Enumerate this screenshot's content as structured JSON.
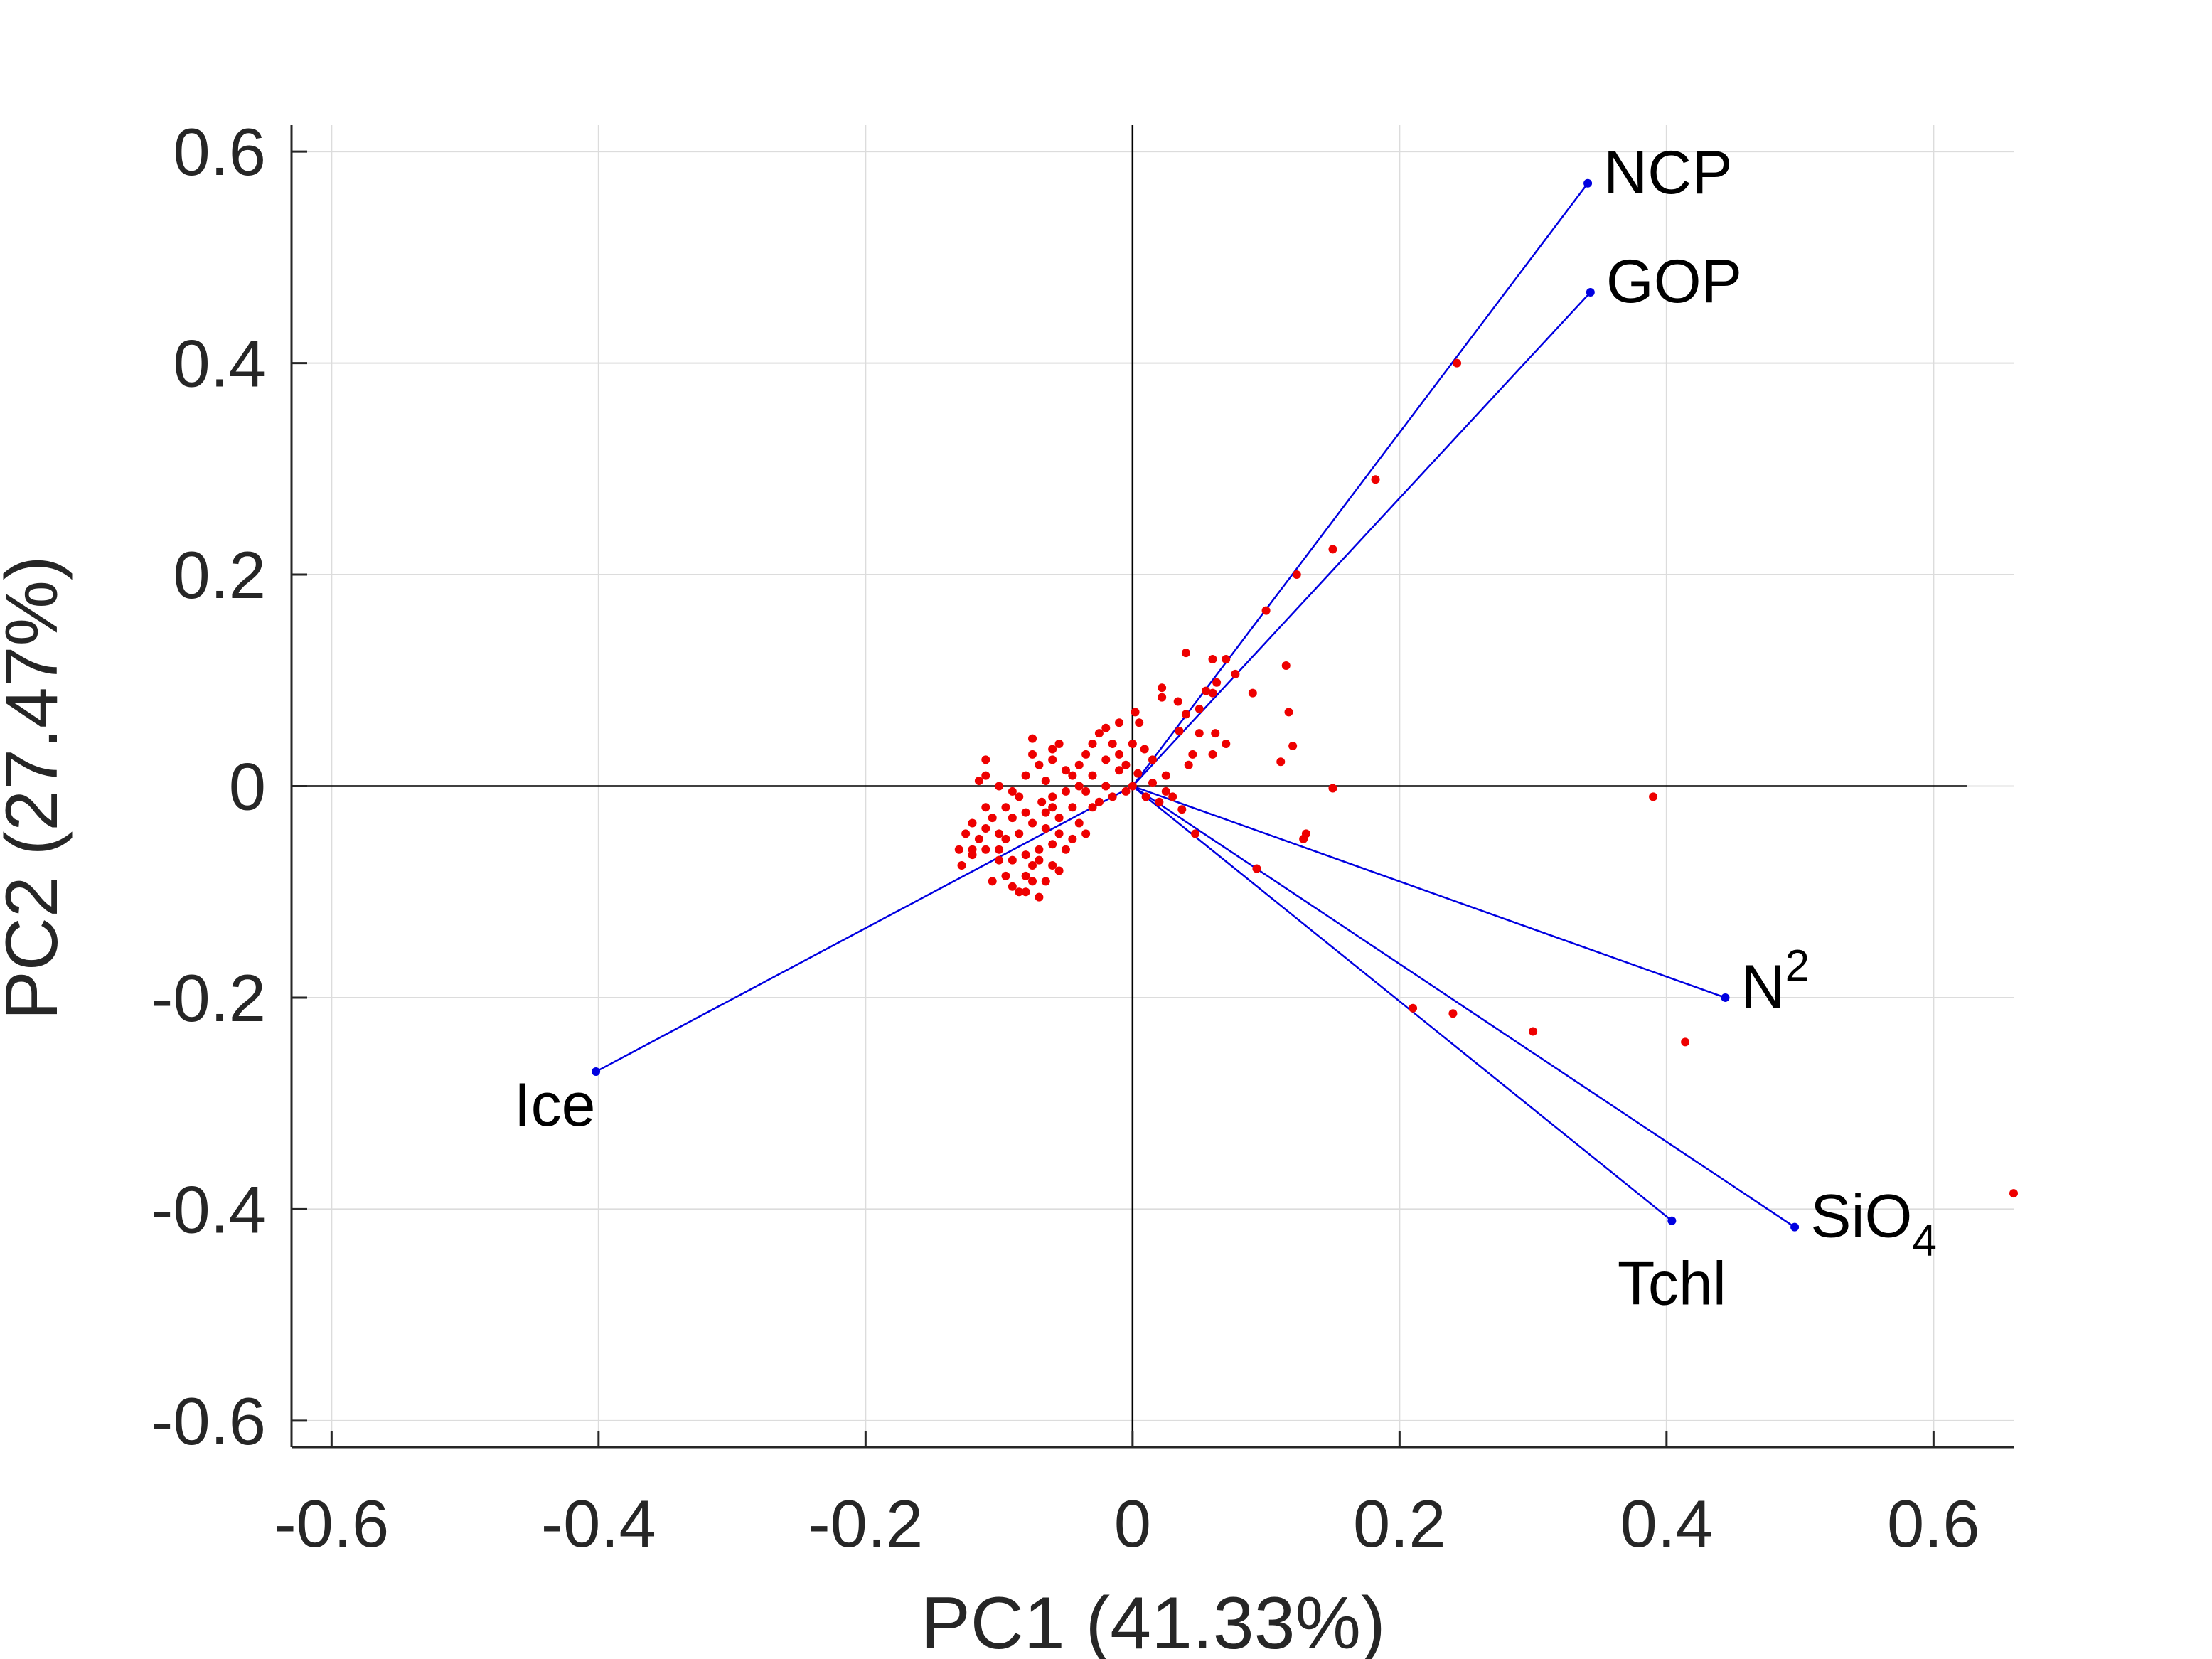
{
  "chart_data": {
    "type": "scatter",
    "subtype": "pca-biplot",
    "xlabel": "PC1 (41.33%)",
    "ylabel": "PC2 (27.47%)",
    "xlim": [
      -0.63,
      0.66
    ],
    "ylim": [
      -0.625,
      0.625
    ],
    "xticks": [
      -0.6,
      -0.4,
      -0.2,
      0,
      0.2,
      0.4,
      0.6
    ],
    "xtick_labels": [
      "-0.6",
      "-0.4",
      "-0.2",
      "0",
      "0.2",
      "0.4",
      "0.6"
    ],
    "yticks": [
      0.6,
      0.4,
      0.2,
      0,
      -0.2,
      -0.4,
      -0.6
    ],
    "ytick_labels": [
      "0.6",
      "0.4",
      "0.2",
      "0",
      "-0.2",
      "-0.4",
      "-0.6"
    ],
    "grid": true,
    "reference_lines": {
      "horizontal_y": 0,
      "vertical_x": 0,
      "horizontal_xmax": 0.625
    },
    "colors": {
      "vectors": "#0000e0",
      "points": "#ee0000",
      "axes": "#262626",
      "grid": "#dcdcdc"
    },
    "vectors": [
      {
        "label": "NCP",
        "label_sub": "",
        "label_sup": "",
        "x": 0.341,
        "y": 0.57,
        "label_anchor": "right"
      },
      {
        "label": "GOP",
        "label_sub": "",
        "label_sup": "",
        "x": 0.343,
        "y": 0.467,
        "label_anchor": "right"
      },
      {
        "label": "N",
        "label_sub": "",
        "label_sup": "2",
        "x": 0.444,
        "y": -0.2,
        "label_anchor": "right"
      },
      {
        "label": "SiO",
        "label_sub": "4",
        "label_sup": "",
        "x": 0.496,
        "y": -0.417,
        "label_anchor": "right"
      },
      {
        "label": "Tchl",
        "label_sub": "",
        "label_sup": "",
        "x": 0.404,
        "y": -0.411,
        "label_anchor": "below"
      },
      {
        "label": "Ice",
        "label_sub": "",
        "label_sup": "",
        "x": -0.402,
        "y": -0.27,
        "label_anchor": "below-left"
      }
    ],
    "points": [
      [
        0.243,
        0.4
      ],
      [
        0.182,
        0.29
      ],
      [
        0.15,
        0.224
      ],
      [
        0.123,
        0.2
      ],
      [
        0.1,
        0.166
      ],
      [
        0.115,
        0.114
      ],
      [
        0.09,
        0.088
      ],
      [
        0.117,
        0.07
      ],
      [
        0.12,
        0.038
      ],
      [
        0.111,
        0.023
      ],
      [
        0.07,
        0.12
      ],
      [
        0.06,
        0.12
      ],
      [
        0.04,
        0.126
      ],
      [
        0.063,
        0.098
      ],
      [
        0.077,
        0.106
      ],
      [
        0.055,
        0.09
      ],
      [
        0.06,
        0.088
      ],
      [
        0.05,
        0.073
      ],
      [
        0.04,
        0.068
      ],
      [
        0.034,
        0.08
      ],
      [
        0.022,
        0.093
      ],
      [
        0.022,
        0.084
      ],
      [
        0.035,
        0.052
      ],
      [
        0.05,
        0.05
      ],
      [
        0.062,
        0.05
      ],
      [
        0.07,
        0.04
      ],
      [
        0.06,
        0.03
      ],
      [
        0.045,
        0.03
      ],
      [
        0.042,
        0.02
      ],
      [
        0.025,
        0.01
      ],
      [
        0.015,
        0.025
      ],
      [
        0.009,
        0.035
      ],
      [
        0.002,
        0.07
      ],
      [
        0.005,
        0.06
      ],
      [
        0.0,
        0.04
      ],
      [
        -0.005,
        0.02
      ],
      [
        0.004,
        0.012
      ],
      [
        0.015,
        0.003
      ],
      [
        0.025,
        -0.005
      ],
      [
        0.03,
        -0.01
      ],
      [
        0.037,
        -0.022
      ],
      [
        0.02,
        -0.015
      ],
      [
        0.01,
        -0.01
      ],
      [
        0.047,
        -0.045
      ],
      [
        0.15,
        -0.002
      ],
      [
        0.13,
        -0.045
      ],
      [
        0.128,
        -0.05
      ],
      [
        0.093,
        -0.078
      ],
      [
        0.39,
        -0.01
      ],
      [
        0.21,
        -0.21
      ],
      [
        0.24,
        -0.215
      ],
      [
        0.3,
        -0.232
      ],
      [
        0.414,
        -0.242
      ],
      [
        0.66,
        -0.385
      ],
      [
        -0.01,
        0.06
      ],
      [
        -0.02,
        0.055
      ],
      [
        -0.025,
        0.05
      ],
      [
        -0.015,
        0.04
      ],
      [
        -0.03,
        0.04
      ],
      [
        -0.035,
        0.03
      ],
      [
        -0.02,
        0.025
      ],
      [
        -0.01,
        0.015
      ],
      [
        -0.005,
        -0.005
      ],
      [
        -0.015,
        -0.01
      ],
      [
        -0.04,
        0.02
      ],
      [
        -0.05,
        0.015
      ],
      [
        -0.055,
        0.04
      ],
      [
        -0.06,
        0.035
      ],
      [
        -0.045,
        0.01
      ],
      [
        -0.035,
        -0.005
      ],
      [
        -0.025,
        -0.015
      ],
      [
        -0.03,
        -0.02
      ],
      [
        -0.045,
        -0.02
      ],
      [
        -0.06,
        -0.01
      ],
      [
        -0.065,
        0.005
      ],
      [
        -0.07,
        0.02
      ],
      [
        -0.075,
        0.03
      ],
      [
        -0.08,
        0.01
      ],
      [
        -0.085,
        -0.01
      ],
      [
        -0.09,
        -0.005
      ],
      [
        -0.095,
        -0.02
      ],
      [
        -0.1,
        0.0
      ],
      [
        -0.105,
        -0.03
      ],
      [
        -0.11,
        -0.04
      ],
      [
        -0.115,
        -0.05
      ],
      [
        -0.12,
        -0.06
      ],
      [
        -0.125,
        -0.045
      ],
      [
        -0.13,
        -0.06
      ],
      [
        -0.128,
        -0.075
      ],
      [
        -0.11,
        -0.06
      ],
      [
        -0.1,
        -0.07
      ],
      [
        -0.105,
        -0.09
      ],
      [
        -0.095,
        -0.085
      ],
      [
        -0.09,
        -0.095
      ],
      [
        -0.085,
        -0.1
      ],
      [
        -0.08,
        -0.1
      ],
      [
        -0.075,
        -0.09
      ],
      [
        -0.07,
        -0.105
      ],
      [
        -0.065,
        -0.09
      ],
      [
        -0.06,
        -0.075
      ],
      [
        -0.07,
        -0.06
      ],
      [
        -0.08,
        -0.065
      ],
      [
        -0.09,
        -0.07
      ],
      [
        -0.085,
        -0.045
      ],
      [
        -0.075,
        -0.035
      ],
      [
        -0.065,
        -0.04
      ],
      [
        -0.055,
        -0.03
      ],
      [
        -0.06,
        -0.055
      ],
      [
        -0.05,
        -0.06
      ],
      [
        -0.045,
        -0.05
      ],
      [
        -0.075,
        -0.075
      ],
      [
        -0.055,
        -0.08
      ],
      [
        -0.095,
        -0.05
      ],
      [
        -0.1,
        -0.045
      ],
      [
        -0.11,
        -0.02
      ],
      [
        -0.11,
        0.025
      ],
      [
        -0.11,
        0.01
      ],
      [
        -0.115,
        0.005
      ],
      [
        -0.12,
        -0.035
      ],
      [
        -0.075,
        0.045
      ],
      [
        -0.06,
        0.025
      ],
      [
        -0.05,
        -0.005
      ],
      [
        -0.04,
        -0.035
      ],
      [
        -0.035,
        -0.045
      ],
      [
        -0.06,
        -0.02
      ],
      [
        -0.068,
        -0.015
      ],
      [
        -0.08,
        -0.025
      ],
      [
        -0.09,
        -0.03
      ],
      [
        -0.1,
        -0.06
      ],
      [
        -0.12,
        -0.065
      ],
      [
        -0.08,
        -0.085
      ],
      [
        -0.07,
        -0.07
      ],
      [
        -0.055,
        -0.045
      ],
      [
        -0.03,
        0.01
      ],
      [
        -0.02,
        0.0
      ],
      [
        -0.01,
        0.03
      ],
      [
        0.0,
        0.0
      ],
      [
        -0.04,
        0.0
      ],
      [
        -0.065,
        -0.025
      ]
    ]
  }
}
